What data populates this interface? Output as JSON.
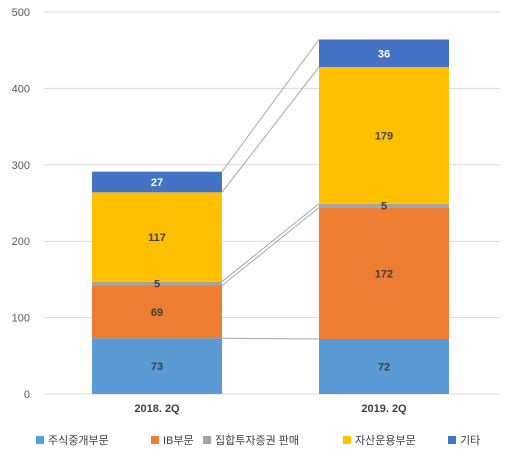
{
  "chart_data": {
    "type": "bar",
    "stacked": true,
    "categories": [
      "2018. 2Q",
      "2019. 2Q"
    ],
    "series": [
      {
        "name": "주식중개부문",
        "color": "#5B9BD5",
        "values": [
          73,
          72
        ]
      },
      {
        "name": "IB부문",
        "color": "#ED7D31",
        "values": [
          69,
          172
        ]
      },
      {
        "name": "집합투자증권 판매",
        "color": "#A5A5A5",
        "values": [
          5,
          5
        ]
      },
      {
        "name": "자산운용부문",
        "color": "#FFC000",
        "values": [
          117,
          179
        ]
      },
      {
        "name": "기타",
        "color": "#4472C4",
        "values": [
          27,
          36
        ]
      }
    ],
    "yticks": [
      "0",
      "100",
      "200",
      "300",
      "400",
      "500"
    ],
    "ylim": [
      0,
      500
    ],
    "grid": true,
    "legend_position": "bottom",
    "connector_lines": true
  }
}
